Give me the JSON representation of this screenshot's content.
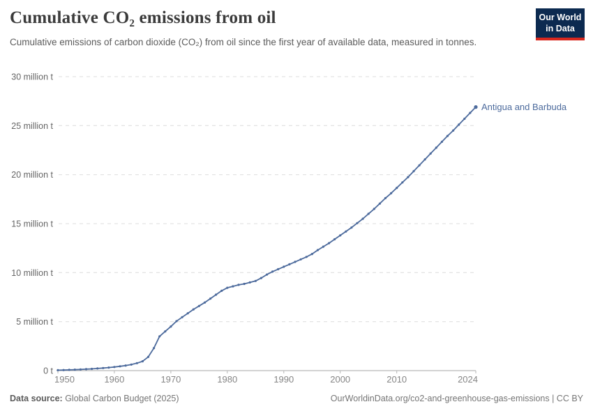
{
  "header": {
    "title": "Cumulative CO₂ emissions from oil",
    "subtitle": "Cumulative emissions of carbon dioxide (CO₂) from oil since the first year of available data, measured in tonnes.",
    "logo": {
      "line1": "Our World",
      "line2": "in Data"
    }
  },
  "chart_data": {
    "type": "line",
    "title": "Cumulative CO₂ emissions from oil",
    "unit": "million t",
    "xlim": [
      1950,
      2024
    ],
    "ylim": [
      0,
      30
    ],
    "x_ticks": [
      1950,
      1960,
      1970,
      1980,
      1990,
      2000,
      2010,
      2024
    ],
    "y_ticks": [
      {
        "value": 0,
        "label": "0 t"
      },
      {
        "value": 5,
        "label": "5 million t"
      },
      {
        "value": 10,
        "label": "10 million t"
      },
      {
        "value": 15,
        "label": "15 million t"
      },
      {
        "value": 20,
        "label": "20 million t"
      },
      {
        "value": 25,
        "label": "25 million t"
      },
      {
        "value": 30,
        "label": "30 million t"
      }
    ],
    "grid": "horizontal-dashed",
    "legend_position": "end-of-line",
    "series": [
      {
        "name": "Antigua and Barbuda",
        "color": "#4c6a9c",
        "start_year": 1950,
        "values": [
          0.04,
          0.06,
          0.08,
          0.1,
          0.12,
          0.15,
          0.18,
          0.22,
          0.26,
          0.31,
          0.37,
          0.44,
          0.52,
          0.62,
          0.76,
          0.95,
          1.4,
          2.3,
          3.5,
          4.0,
          4.5,
          5.05,
          5.45,
          5.85,
          6.25,
          6.6,
          6.95,
          7.35,
          7.75,
          8.15,
          8.45,
          8.6,
          8.75,
          8.85,
          9.0,
          9.15,
          9.45,
          9.8,
          10.1,
          10.35,
          10.6,
          10.85,
          11.1,
          11.35,
          11.6,
          11.9,
          12.3,
          12.65,
          13.0,
          13.4,
          13.8,
          14.2,
          14.6,
          15.05,
          15.5,
          16.0,
          16.5,
          17.05,
          17.6,
          18.1,
          18.65,
          19.2,
          19.75,
          20.35,
          20.95,
          21.55,
          22.15,
          22.75,
          23.35,
          23.95,
          24.5,
          25.1,
          25.7,
          26.3,
          26.9
        ]
      }
    ]
  },
  "colors": {
    "series_blue": "#4c6a9c",
    "grid": "#dcdcdc",
    "axis": "#a5a5a5",
    "tick": "#b5b5b5",
    "logo_bg": "#0c2a50",
    "logo_accent": "#d8281e"
  },
  "footer": {
    "source_label": "Data source:",
    "source_value": " Global Carbon Budget (2025)",
    "attribution": "OurWorldinData.org/co2-and-greenhouse-gas-emissions | CC BY"
  }
}
